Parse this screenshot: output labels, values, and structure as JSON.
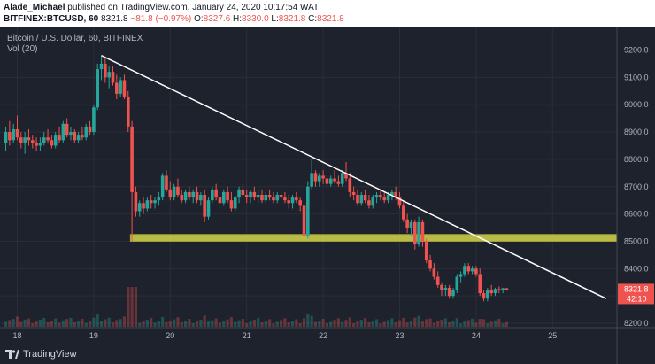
{
  "header": {
    "author": "Alade_Michael",
    "published": "published on TradingView.com, January 24, 2020 10:17:54 WAT",
    "symbol": "BITFINEX:BTCUSD, 60",
    "last": "8321.8",
    "change": "−81.8 (−0.97%)",
    "o_label": "O:",
    "o_value": "8327.6",
    "h_label": "H:",
    "h_value": "8330.0",
    "l_label": "L:",
    "l_value": "8321.8",
    "c_label": "C:",
    "c_value": "8321.8"
  },
  "title": "Bitcoin / U.S. Dollar, 60, BITFINEX",
  "volume_label": "Vol (20)",
  "footer_brand": "TradingView",
  "colors": {
    "up": "#26a69a",
    "down": "#ef5350",
    "support": "#d4d64a",
    "trendline": "#ffffff",
    "bg": "#1e222d",
    "grid": "#2a2e39"
  },
  "chart_data": {
    "type": "candlestick",
    "x_tick_labels": [
      "18",
      "19",
      "20",
      "21",
      "22",
      "23",
      "24",
      "25"
    ],
    "y_tick_labels": [
      "9200.0",
      "9100.0",
      "9000.0",
      "8900.0",
      "8800.0",
      "8700.0",
      "8600.0",
      "8500.0",
      "8400.0",
      "8300.0",
      "8200.0"
    ],
    "ylim": [
      8200,
      9230
    ],
    "last_price": "8321.8",
    "countdown": "42:10",
    "support_zone": [
      8500,
      8525
    ],
    "trendline": [
      {
        "day": 19.1,
        "price": 9180
      },
      {
        "day": 25.7,
        "price": 8290
      }
    ],
    "candles": [
      {
        "day": 17.85,
        "o": 8860,
        "h": 8920,
        "l": 8830,
        "c": 8900
      },
      {
        "day": 17.9,
        "o": 8900,
        "h": 8940,
        "l": 8850,
        "c": 8870
      },
      {
        "day": 17.95,
        "o": 8870,
        "h": 8930,
        "l": 8860,
        "c": 8910
      },
      {
        "day": 18.0,
        "o": 8910,
        "h": 8960,
        "l": 8870,
        "c": 8880
      },
      {
        "day": 18.05,
        "o": 8880,
        "h": 8900,
        "l": 8840,
        "c": 8860
      },
      {
        "day": 18.1,
        "o": 8860,
        "h": 8900,
        "l": 8820,
        "c": 8880
      },
      {
        "day": 18.15,
        "o": 8880,
        "h": 8910,
        "l": 8850,
        "c": 8870
      },
      {
        "day": 18.2,
        "o": 8870,
        "h": 8890,
        "l": 8840,
        "c": 8860
      },
      {
        "day": 18.25,
        "o": 8860,
        "h": 8880,
        "l": 8830,
        "c": 8850
      },
      {
        "day": 18.3,
        "o": 8850,
        "h": 8880,
        "l": 8830,
        "c": 8860
      },
      {
        "day": 18.35,
        "o": 8860,
        "h": 8900,
        "l": 8850,
        "c": 8880
      },
      {
        "day": 18.4,
        "o": 8880,
        "h": 8910,
        "l": 8860,
        "c": 8870
      },
      {
        "day": 18.45,
        "o": 8870,
        "h": 8890,
        "l": 8840,
        "c": 8850
      },
      {
        "day": 18.5,
        "o": 8850,
        "h": 8900,
        "l": 8840,
        "c": 8890
      },
      {
        "day": 18.55,
        "o": 8890,
        "h": 8920,
        "l": 8860,
        "c": 8870
      },
      {
        "day": 18.6,
        "o": 8870,
        "h": 8940,
        "l": 8860,
        "c": 8930
      },
      {
        "day": 18.65,
        "o": 8930,
        "h": 8950,
        "l": 8880,
        "c": 8890
      },
      {
        "day": 18.7,
        "o": 8890,
        "h": 8920,
        "l": 8870,
        "c": 8900
      },
      {
        "day": 18.75,
        "o": 8900,
        "h": 8910,
        "l": 8860,
        "c": 8870
      },
      {
        "day": 18.8,
        "o": 8870,
        "h": 8900,
        "l": 8860,
        "c": 8890
      },
      {
        "day": 18.85,
        "o": 8890,
        "h": 8920,
        "l": 8870,
        "c": 8880
      },
      {
        "day": 18.9,
        "o": 8880,
        "h": 8930,
        "l": 8870,
        "c": 8920
      },
      {
        "day": 18.95,
        "o": 8920,
        "h": 8940,
        "l": 8890,
        "c": 8900
      },
      {
        "day": 19.0,
        "o": 8900,
        "h": 9000,
        "l": 8890,
        "c": 8990
      },
      {
        "day": 19.05,
        "o": 8990,
        "h": 9150,
        "l": 8980,
        "c": 9130
      },
      {
        "day": 19.1,
        "o": 9130,
        "h": 9180,
        "l": 9090,
        "c": 9150
      },
      {
        "day": 19.15,
        "o": 9150,
        "h": 9170,
        "l": 9080,
        "c": 9100
      },
      {
        "day": 19.2,
        "o": 9100,
        "h": 9140,
        "l": 9060,
        "c": 9120
      },
      {
        "day": 19.25,
        "o": 9120,
        "h": 9140,
        "l": 9070,
        "c": 9080
      },
      {
        "day": 19.3,
        "o": 9080,
        "h": 9110,
        "l": 9020,
        "c": 9040
      },
      {
        "day": 19.35,
        "o": 9040,
        "h": 9100,
        "l": 9030,
        "c": 9090
      },
      {
        "day": 19.4,
        "o": 9090,
        "h": 9110,
        "l": 9020,
        "c": 9030
      },
      {
        "day": 19.45,
        "o": 9030,
        "h": 9050,
        "l": 8900,
        "c": 8920
      },
      {
        "day": 19.5,
        "o": 8920,
        "h": 8940,
        "l": 8500,
        "c": 8680
      },
      {
        "day": 19.55,
        "o": 8680,
        "h": 8700,
        "l": 8590,
        "c": 8610
      },
      {
        "day": 19.6,
        "o": 8610,
        "h": 8650,
        "l": 8590,
        "c": 8640
      },
      {
        "day": 19.65,
        "o": 8640,
        "h": 8660,
        "l": 8600,
        "c": 8620
      },
      {
        "day": 19.7,
        "o": 8620,
        "h": 8660,
        "l": 8610,
        "c": 8650
      },
      {
        "day": 19.75,
        "o": 8650,
        "h": 8670,
        "l": 8620,
        "c": 8640
      },
      {
        "day": 19.8,
        "o": 8640,
        "h": 8660,
        "l": 8620,
        "c": 8650
      },
      {
        "day": 19.85,
        "o": 8650,
        "h": 8680,
        "l": 8630,
        "c": 8660
      },
      {
        "day": 19.9,
        "o": 8660,
        "h": 8750,
        "l": 8650,
        "c": 8740
      },
      {
        "day": 19.95,
        "o": 8740,
        "h": 8760,
        "l": 8680,
        "c": 8690
      },
      {
        "day": 20.0,
        "o": 8690,
        "h": 8720,
        "l": 8650,
        "c": 8660
      },
      {
        "day": 20.05,
        "o": 8660,
        "h": 8710,
        "l": 8650,
        "c": 8700
      },
      {
        "day": 20.1,
        "o": 8700,
        "h": 8730,
        "l": 8660,
        "c": 8670
      },
      {
        "day": 20.15,
        "o": 8670,
        "h": 8690,
        "l": 8640,
        "c": 8650
      },
      {
        "day": 20.2,
        "o": 8650,
        "h": 8690,
        "l": 8640,
        "c": 8680
      },
      {
        "day": 20.25,
        "o": 8680,
        "h": 8700,
        "l": 8650,
        "c": 8660
      },
      {
        "day": 20.3,
        "o": 8660,
        "h": 8690,
        "l": 8640,
        "c": 8680
      },
      {
        "day": 20.35,
        "o": 8680,
        "h": 8700,
        "l": 8640,
        "c": 8650
      },
      {
        "day": 20.4,
        "o": 8650,
        "h": 8680,
        "l": 8630,
        "c": 8670
      },
      {
        "day": 20.45,
        "o": 8670,
        "h": 8690,
        "l": 8570,
        "c": 8590
      },
      {
        "day": 20.5,
        "o": 8590,
        "h": 8660,
        "l": 8580,
        "c": 8650
      },
      {
        "day": 20.55,
        "o": 8650,
        "h": 8700,
        "l": 8640,
        "c": 8690
      },
      {
        "day": 20.6,
        "o": 8690,
        "h": 8710,
        "l": 8650,
        "c": 8660
      },
      {
        "day": 20.65,
        "o": 8660,
        "h": 8680,
        "l": 8620,
        "c": 8640
      },
      {
        "day": 20.7,
        "o": 8640,
        "h": 8690,
        "l": 8630,
        "c": 8680
      },
      {
        "day": 20.75,
        "o": 8680,
        "h": 8700,
        "l": 8640,
        "c": 8650
      },
      {
        "day": 20.8,
        "o": 8650,
        "h": 8680,
        "l": 8610,
        "c": 8620
      },
      {
        "day": 20.85,
        "o": 8620,
        "h": 8670,
        "l": 8610,
        "c": 8660
      },
      {
        "day": 20.9,
        "o": 8660,
        "h": 8700,
        "l": 8640,
        "c": 8690
      },
      {
        "day": 20.95,
        "o": 8690,
        "h": 8710,
        "l": 8660,
        "c": 8670
      },
      {
        "day": 21.0,
        "o": 8670,
        "h": 8690,
        "l": 8640,
        "c": 8660
      },
      {
        "day": 21.05,
        "o": 8660,
        "h": 8690,
        "l": 8640,
        "c": 8680
      },
      {
        "day": 21.1,
        "o": 8680,
        "h": 8700,
        "l": 8650,
        "c": 8660
      },
      {
        "day": 21.15,
        "o": 8660,
        "h": 8690,
        "l": 8640,
        "c": 8670
      },
      {
        "day": 21.2,
        "o": 8670,
        "h": 8690,
        "l": 8640,
        "c": 8650
      },
      {
        "day": 21.25,
        "o": 8650,
        "h": 8680,
        "l": 8640,
        "c": 8670
      },
      {
        "day": 21.3,
        "o": 8670,
        "h": 8690,
        "l": 8650,
        "c": 8660
      },
      {
        "day": 21.35,
        "o": 8660,
        "h": 8680,
        "l": 8640,
        "c": 8650
      },
      {
        "day": 21.4,
        "o": 8650,
        "h": 8680,
        "l": 8640,
        "c": 8670
      },
      {
        "day": 21.45,
        "o": 8670,
        "h": 8690,
        "l": 8650,
        "c": 8660
      },
      {
        "day": 21.5,
        "o": 8660,
        "h": 8680,
        "l": 8640,
        "c": 8650
      },
      {
        "day": 21.55,
        "o": 8650,
        "h": 8670,
        "l": 8620,
        "c": 8640
      },
      {
        "day": 21.6,
        "o": 8640,
        "h": 8670,
        "l": 8620,
        "c": 8660
      },
      {
        "day": 21.65,
        "o": 8660,
        "h": 8680,
        "l": 8640,
        "c": 8650
      },
      {
        "day": 21.7,
        "o": 8650,
        "h": 8660,
        "l": 8610,
        "c": 8630
      },
      {
        "day": 21.75,
        "o": 8630,
        "h": 8650,
        "l": 8510,
        "c": 8520
      },
      {
        "day": 21.8,
        "o": 8520,
        "h": 8720,
        "l": 8510,
        "c": 8700
      },
      {
        "day": 21.85,
        "o": 8700,
        "h": 8800,
        "l": 8690,
        "c": 8750
      },
      {
        "day": 21.9,
        "o": 8750,
        "h": 8760,
        "l": 8700,
        "c": 8720
      },
      {
        "day": 21.95,
        "o": 8720,
        "h": 8750,
        "l": 8700,
        "c": 8740
      },
      {
        "day": 22.0,
        "o": 8740,
        "h": 8760,
        "l": 8710,
        "c": 8730
      },
      {
        "day": 22.05,
        "o": 8730,
        "h": 8740,
        "l": 8690,
        "c": 8710
      },
      {
        "day": 22.1,
        "o": 8710,
        "h": 8740,
        "l": 8700,
        "c": 8730
      },
      {
        "day": 22.15,
        "o": 8730,
        "h": 8760,
        "l": 8710,
        "c": 8720
      },
      {
        "day": 22.2,
        "o": 8720,
        "h": 8740,
        "l": 8700,
        "c": 8710
      },
      {
        "day": 22.25,
        "o": 8710,
        "h": 8760,
        "l": 8700,
        "c": 8750
      },
      {
        "day": 22.3,
        "o": 8750,
        "h": 8790,
        "l": 8720,
        "c": 8730
      },
      {
        "day": 22.35,
        "o": 8730,
        "h": 8750,
        "l": 8660,
        "c": 8680
      },
      {
        "day": 22.4,
        "o": 8680,
        "h": 8700,
        "l": 8650,
        "c": 8670
      },
      {
        "day": 22.45,
        "o": 8670,
        "h": 8690,
        "l": 8630,
        "c": 8640
      },
      {
        "day": 22.5,
        "o": 8640,
        "h": 8680,
        "l": 8630,
        "c": 8670
      },
      {
        "day": 22.55,
        "o": 8670,
        "h": 8690,
        "l": 8640,
        "c": 8650
      },
      {
        "day": 22.6,
        "o": 8650,
        "h": 8670,
        "l": 8620,
        "c": 8630
      },
      {
        "day": 22.65,
        "o": 8630,
        "h": 8670,
        "l": 8620,
        "c": 8660
      },
      {
        "day": 22.7,
        "o": 8660,
        "h": 8680,
        "l": 8640,
        "c": 8670
      },
      {
        "day": 22.75,
        "o": 8670,
        "h": 8690,
        "l": 8650,
        "c": 8660
      },
      {
        "day": 22.8,
        "o": 8660,
        "h": 8680,
        "l": 8640,
        "c": 8650
      },
      {
        "day": 22.85,
        "o": 8650,
        "h": 8680,
        "l": 8640,
        "c": 8670
      },
      {
        "day": 22.9,
        "o": 8670,
        "h": 8690,
        "l": 8650,
        "c": 8680
      },
      {
        "day": 22.95,
        "o": 8680,
        "h": 8700,
        "l": 8650,
        "c": 8660
      },
      {
        "day": 23.0,
        "o": 8660,
        "h": 8680,
        "l": 8620,
        "c": 8630
      },
      {
        "day": 23.05,
        "o": 8630,
        "h": 8650,
        "l": 8570,
        "c": 8580
      },
      {
        "day": 23.1,
        "o": 8580,
        "h": 8600,
        "l": 8530,
        "c": 8550
      },
      {
        "day": 23.15,
        "o": 8550,
        "h": 8580,
        "l": 8520,
        "c": 8570
      },
      {
        "day": 23.2,
        "o": 8570,
        "h": 8580,
        "l": 8470,
        "c": 8490
      },
      {
        "day": 23.25,
        "o": 8490,
        "h": 8590,
        "l": 8480,
        "c": 8570
      },
      {
        "day": 23.3,
        "o": 8570,
        "h": 8580,
        "l": 8480,
        "c": 8500
      },
      {
        "day": 23.35,
        "o": 8500,
        "h": 8510,
        "l": 8420,
        "c": 8430
      },
      {
        "day": 23.4,
        "o": 8430,
        "h": 8450,
        "l": 8390,
        "c": 8400
      },
      {
        "day": 23.45,
        "o": 8400,
        "h": 8420,
        "l": 8360,
        "c": 8370
      },
      {
        "day": 23.5,
        "o": 8370,
        "h": 8390,
        "l": 8330,
        "c": 8340
      },
      {
        "day": 23.55,
        "o": 8340,
        "h": 8350,
        "l": 8300,
        "c": 8320
      },
      {
        "day": 23.6,
        "o": 8320,
        "h": 8340,
        "l": 8300,
        "c": 8330
      },
      {
        "day": 23.65,
        "o": 8330,
        "h": 8340,
        "l": 8290,
        "c": 8300
      },
      {
        "day": 23.7,
        "o": 8300,
        "h": 8330,
        "l": 8290,
        "c": 8320
      },
      {
        "day": 23.75,
        "o": 8320,
        "h": 8380,
        "l": 8310,
        "c": 8370
      },
      {
        "day": 23.8,
        "o": 8370,
        "h": 8390,
        "l": 8350,
        "c": 8380
      },
      {
        "day": 23.85,
        "o": 8380,
        "h": 8420,
        "l": 8370,
        "c": 8410
      },
      {
        "day": 23.9,
        "o": 8410,
        "h": 8420,
        "l": 8380,
        "c": 8390
      },
      {
        "day": 23.95,
        "o": 8390,
        "h": 8410,
        "l": 8380,
        "c": 8400
      },
      {
        "day": 24.0,
        "o": 8400,
        "h": 8410,
        "l": 8370,
        "c": 8380
      },
      {
        "day": 24.05,
        "o": 8380,
        "h": 8400,
        "l": 8300,
        "c": 8310
      },
      {
        "day": 24.1,
        "o": 8310,
        "h": 8320,
        "l": 8280,
        "c": 8290
      },
      {
        "day": 24.15,
        "o": 8290,
        "h": 8330,
        "l": 8280,
        "c": 8320
      },
      {
        "day": 24.2,
        "o": 8320,
        "h": 8340,
        "l": 8300,
        "c": 8310
      },
      {
        "day": 24.25,
        "o": 8310,
        "h": 8330,
        "l": 8300,
        "c": 8325
      },
      {
        "day": 24.3,
        "o": 8325,
        "h": 8335,
        "l": 8310,
        "c": 8320
      },
      {
        "day": 24.35,
        "o": 8320,
        "h": 8330,
        "l": 8310,
        "c": 8328
      },
      {
        "day": 24.4,
        "o": 8328,
        "h": 8330,
        "l": 8320,
        "c": 8322
      }
    ]
  }
}
